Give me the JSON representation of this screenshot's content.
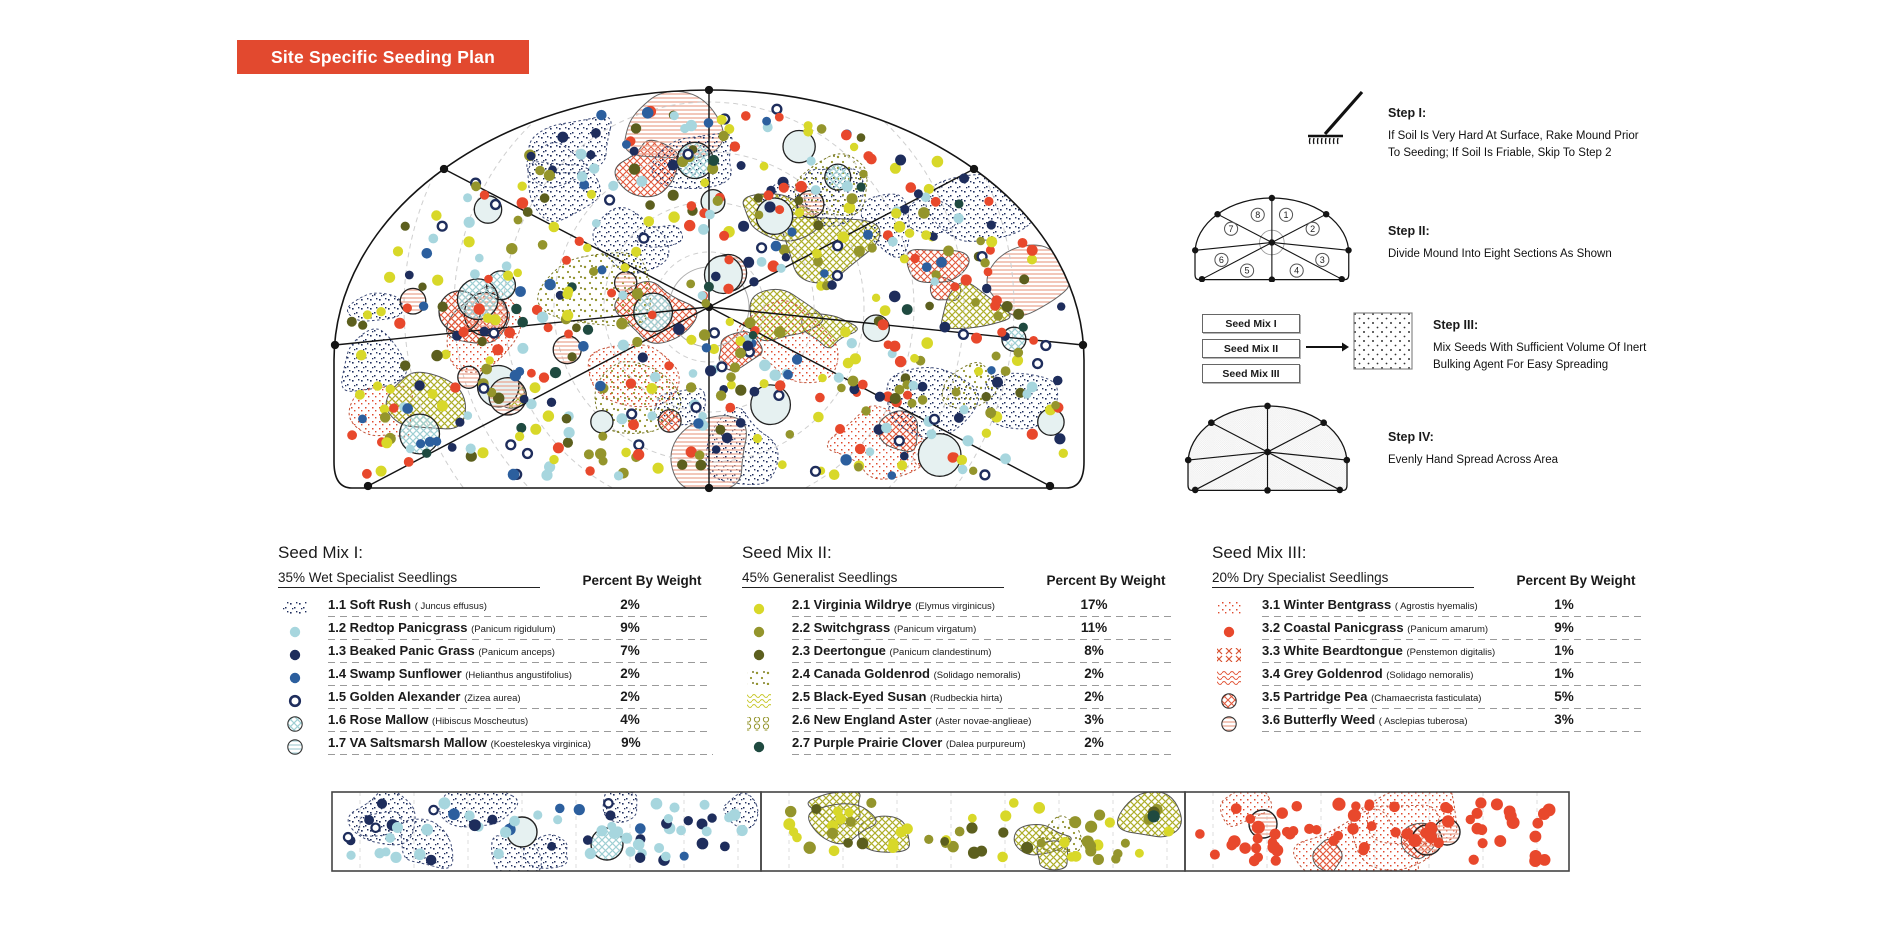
{
  "banner": {
    "title": "Site Specific Seeding Plan"
  },
  "steps": [
    {
      "label": "Step I:",
      "body_lines": [
        "If Soil Is Very Hard At Surface, Rake Mound Prior",
        "To Seeding; If Soil Is Friable, Skip To Step 2"
      ],
      "icon": "rake-icon"
    },
    {
      "label": "Step II:",
      "body_lines": [
        "Divide Mound Into Eight Sections As Shown"
      ],
      "icon": "sectioned-mound-icon",
      "section_numbers": [
        "1",
        "2",
        "3",
        "4",
        "5",
        "6",
        "7",
        "8"
      ]
    },
    {
      "label": "Step III:",
      "body_lines": [
        "Mix Seeds With Sufficient Volume Of Inert",
        "Bulking Agent For Easy Spreading"
      ],
      "icon": "mix-arrow-icon",
      "mix_boxes": [
        "Seed Mix I",
        "Seed Mix II",
        "Seed Mix III"
      ]
    },
    {
      "label": "Step IV:",
      "body_lines": [
        "Evenly Hand Spread Across Area"
      ],
      "icon": "dotted-mound-icon"
    }
  ],
  "seed_mixes": [
    {
      "title": "Seed Mix I:",
      "subtitle": "35% Wet Specialist Seedlings",
      "column_header": "Percent By Weight",
      "species": [
        {
          "num": "1.1",
          "name": "Soft Rush",
          "latin": "( Juncus effusus)",
          "percent": "2%",
          "swatch": {
            "kind": "stipple",
            "color": "navy"
          }
        },
        {
          "num": "1.2",
          "name": "Redtop Panicgrass",
          "latin": "(Panicum rigidulum)",
          "percent": "9%",
          "swatch": {
            "kind": "dot",
            "color": "light_blue"
          }
        },
        {
          "num": "1.3",
          "name": "Beaked Panic Grass",
          "latin": "(Panicum anceps)",
          "percent": "7%",
          "swatch": {
            "kind": "dot",
            "color": "navy"
          }
        },
        {
          "num": "1.4",
          "name": "Swamp Sunflower",
          "latin": "(Helianthus angustifolius)",
          "percent": "2%",
          "swatch": {
            "kind": "dot",
            "color": "medium_blue"
          }
        },
        {
          "num": "1.5",
          "name": "Golden Alexander",
          "latin": "(Zizea aurea)",
          "percent": "2%",
          "swatch": {
            "kind": "ring",
            "color": "navy"
          }
        },
        {
          "num": "1.6",
          "name": "Rose Mallow",
          "latin": "(Hibiscus Moscheutus)",
          "percent": "4%",
          "swatch": {
            "kind": "circle-hatch",
            "color": "teal"
          }
        },
        {
          "num": "1.7",
          "name": "VA Saltsmarsh Mallow",
          "latin": "(Koesteleskya virginica)",
          "percent": "9%",
          "swatch": {
            "kind": "circle-lines",
            "color": "blue"
          }
        }
      ]
    },
    {
      "title": "Seed Mix II:",
      "subtitle": "45%  Generalist Seedlings",
      "column_header": "Percent By Weight",
      "species": [
        {
          "num": "2.1",
          "name": "Virginia Wildrye",
          "latin": "(Elymus virginicus)",
          "percent": "17%",
          "swatch": {
            "kind": "dot",
            "color": "yellow_green"
          }
        },
        {
          "num": "2.2",
          "name": "Switchgrass",
          "latin": "(Panicum virgatum)",
          "percent": "11%",
          "swatch": {
            "kind": "dot",
            "color": "olive"
          }
        },
        {
          "num": "2.3",
          "name": "Deertongue",
          "latin": "(Panicum clandestinum)",
          "percent": "8%",
          "swatch": {
            "kind": "dot",
            "color": "dark_olive"
          }
        },
        {
          "num": "2.4",
          "name": "Canada Goldenrod",
          "latin": "(Solidago nemoralis)",
          "percent": "2%",
          "swatch": {
            "kind": "stipple",
            "color": "olive"
          }
        },
        {
          "num": "2.5",
          "name": "Black-Eyed Susan",
          "latin": "(Rudbeckia hirta)",
          "percent": "2%",
          "swatch": {
            "kind": "wave",
            "color": "yellow"
          }
        },
        {
          "num": "2.6",
          "name": "New England Aster",
          "latin": "(Aster novae-anglieae)",
          "percent": "3%",
          "swatch": {
            "kind": "rings-row",
            "color": "olive"
          }
        },
        {
          "num": "2.7",
          "name": "Purple Prairie Clover",
          "latin": "(Dalea purpureum)",
          "percent": "2%",
          "swatch": {
            "kind": "dot",
            "color": "dark_green"
          }
        }
      ]
    },
    {
      "title": "Seed Mix III:",
      "subtitle": "20%  Dry Specialist Seedlings",
      "column_header": "Percent By Weight",
      "species": [
        {
          "num": "3.1",
          "name": "Winter Bentgrass",
          "latin": "( Agrostis hyemalis)",
          "percent": "1%",
          "swatch": {
            "kind": "stipple",
            "color": "red"
          }
        },
        {
          "num": "3.2",
          "name": "Coastal Panicgrass",
          "latin": "(Panicum amarum)",
          "percent": "9%",
          "swatch": {
            "kind": "dot",
            "color": "red"
          }
        },
        {
          "num": "3.3",
          "name": "White Beardtongue",
          "latin": "(Penstemon digitalis)",
          "percent": "1%",
          "swatch": {
            "kind": "x-hatch",
            "color": "red"
          }
        },
        {
          "num": "3.4",
          "name": "Grey Goldenrod",
          "latin": "(Solidago nemoralis)",
          "percent": "1%",
          "swatch": {
            "kind": "wave",
            "color": "red"
          }
        },
        {
          "num": "3.5",
          "name": "Partridge Pea",
          "latin": "(Chamaecrista fasticulata)",
          "percent": "5%",
          "swatch": {
            "kind": "circle-hatch",
            "color": "red"
          }
        },
        {
          "num": "3.6",
          "name": "Butterfly Weed",
          "latin": "( Asclepias tuberosa)",
          "percent": "3%",
          "swatch": {
            "kind": "circle-lines",
            "color": "pink"
          }
        }
      ]
    }
  ],
  "palette": {
    "banner_red": "#E2492F",
    "banner_text": "#FFFFFF",
    "light_blue": "#A7D6DE",
    "pale_blue": "#E6F1F1",
    "navy": "#1E2D5C",
    "medium_blue": "#2C5F9E",
    "yellow_green": "#D8D829",
    "olive": "#94952C",
    "dark_olive": "#5C5F1E",
    "dark_green": "#1F4A40",
    "red": "#E8482C",
    "pink_fill": "#F3D9CE",
    "salmon_line": "#E8A18C",
    "teal_hatch": "#9FCFD3",
    "outline_black": "#141414",
    "contour_gray": "#CFCFCF"
  }
}
